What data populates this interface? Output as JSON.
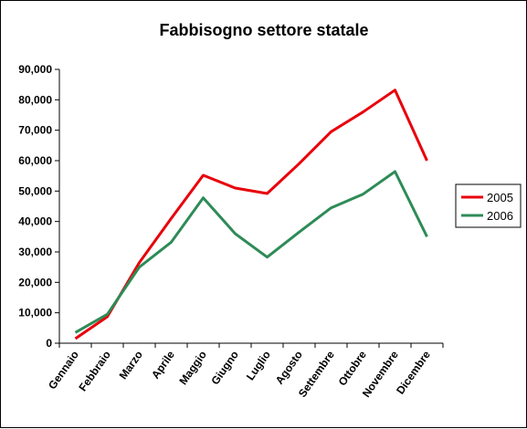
{
  "chart_data": {
    "type": "line",
    "title": "Fabbisogno settore statale",
    "xlabel": "",
    "ylabel": "",
    "categories": [
      "Gennaio",
      "Febbraio",
      "Marzo",
      "Aprile",
      "Maggio",
      "Giugno",
      "Luglio",
      "Agosto",
      "Settembre",
      "Ottobre",
      "Novembre",
      "Dicembre"
    ],
    "ylim": [
      0,
      90000
    ],
    "yticks": [
      0,
      10000,
      20000,
      30000,
      40000,
      50000,
      60000,
      70000,
      80000,
      90000
    ],
    "ytick_labels": [
      "0",
      "10,000",
      "20,000",
      "30,000",
      "40,000",
      "50,000",
      "60,000",
      "70,000",
      "80,000",
      "90,000"
    ],
    "grid": false,
    "legend_position": "right",
    "series": [
      {
        "name": "2005",
        "color": "#e8000b",
        "values": [
          1500,
          8700,
          26500,
          41000,
          55200,
          51000,
          49200,
          59000,
          69500,
          76000,
          83200,
          60000
        ]
      },
      {
        "name": "2006",
        "color": "#2e8b57",
        "values": [
          3500,
          9500,
          25000,
          33200,
          47800,
          36000,
          28300,
          36500,
          44500,
          49000,
          56400,
          35000
        ]
      }
    ]
  }
}
